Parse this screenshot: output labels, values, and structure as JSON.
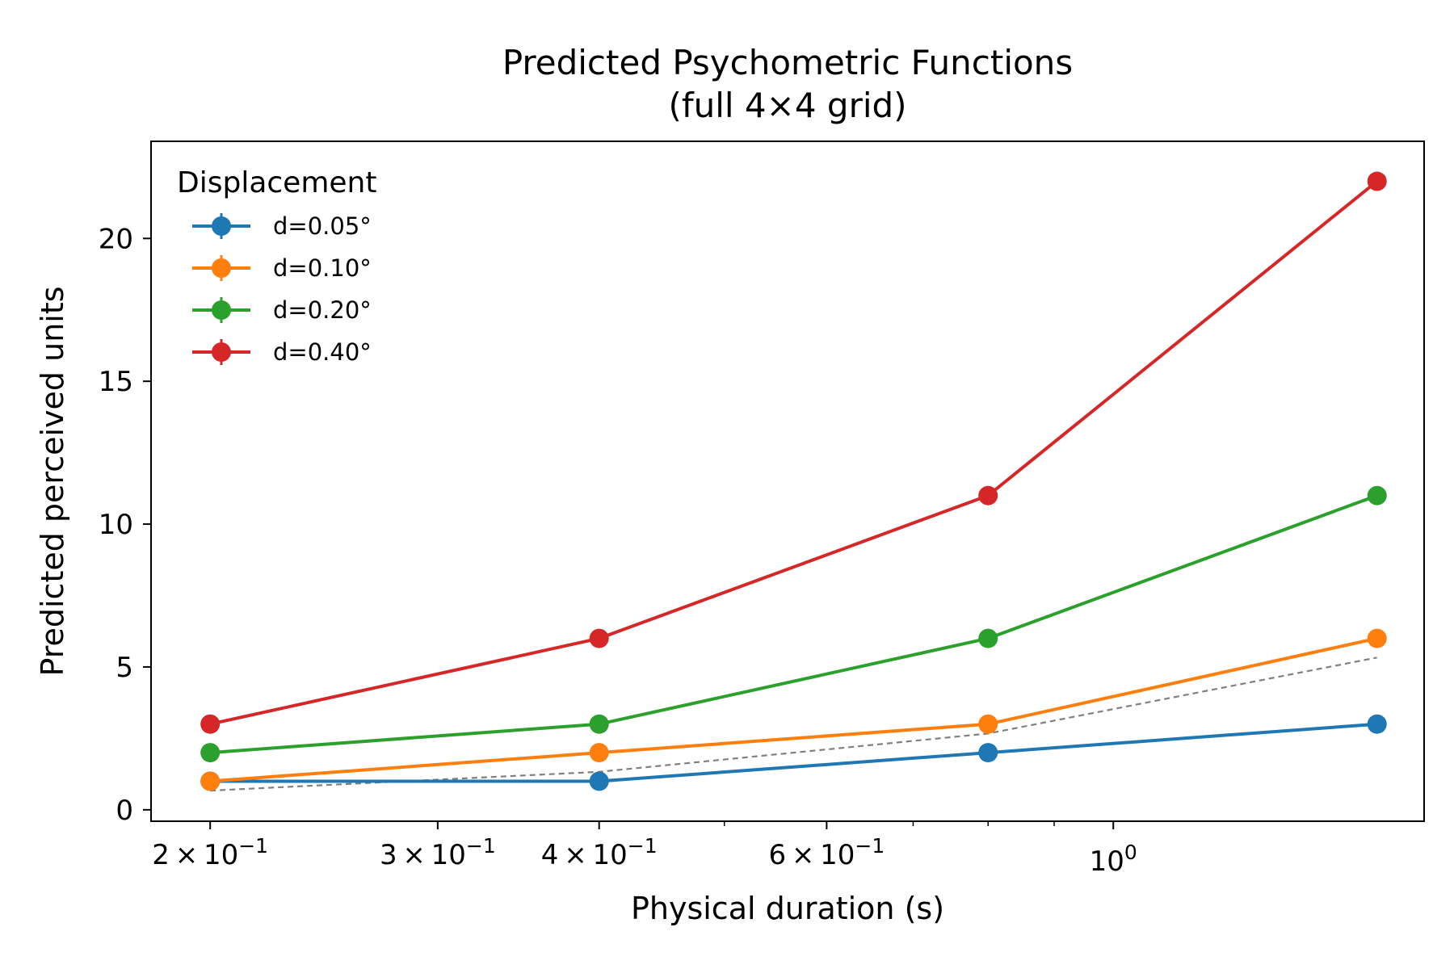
{
  "chart_data": {
    "type": "line",
    "title_line1": "Predicted Psychometric Functions",
    "title_line2": "(full 4×4 grid)",
    "xlabel": "Physical duration (s)",
    "ylabel": "Predicted perceived units",
    "xscale": "log",
    "x": [
      0.2,
      0.4,
      0.8,
      1.6
    ],
    "xlim": [
      0.18,
      1.74
    ],
    "ylim": [
      -0.4,
      23.4
    ],
    "yticks": [
      {
        "value": 0,
        "label": "0"
      },
      {
        "value": 5,
        "label": "5"
      },
      {
        "value": 10,
        "label": "10"
      },
      {
        "value": 15,
        "label": "15"
      },
      {
        "value": 20,
        "label": "20"
      }
    ],
    "xticks_major": [
      {
        "value": 0.2,
        "mant": "2",
        "exp": "−1"
      },
      {
        "value": 0.3,
        "mant": "3",
        "exp": "−1"
      },
      {
        "value": 0.4,
        "mant": "4",
        "exp": "−1"
      },
      {
        "value": 0.6,
        "mant": "6",
        "exp": "−1"
      },
      {
        "value": 1.0,
        "mant": "",
        "exp": "0"
      }
    ],
    "x_tick_base": "10",
    "x_tick_times": "×",
    "xticks_minor": [
      0.5,
      0.7,
      0.8,
      0.9
    ],
    "legend": {
      "title": "Displacement",
      "placement": "top-left"
    },
    "series": [
      {
        "name": "d=0.05°",
        "color": "#1f77b4",
        "values": [
          1,
          1,
          2,
          3
        ]
      },
      {
        "name": "d=0.10°",
        "color": "#ff7f0e",
        "values": [
          1,
          2,
          3,
          6
        ]
      },
      {
        "name": "d=0.20°",
        "color": "#2ca02c",
        "values": [
          2,
          3,
          6,
          11
        ]
      },
      {
        "name": "d=0.40°",
        "color": "#d62728",
        "values": [
          3,
          6,
          11,
          22
        ]
      }
    ],
    "reference_line": {
      "style": "dashed",
      "color": "#808080",
      "x": [
        0.2,
        0.4,
        0.8,
        1.6
      ],
      "values": [
        0.67,
        1.33,
        2.67,
        5.33
      ]
    }
  }
}
